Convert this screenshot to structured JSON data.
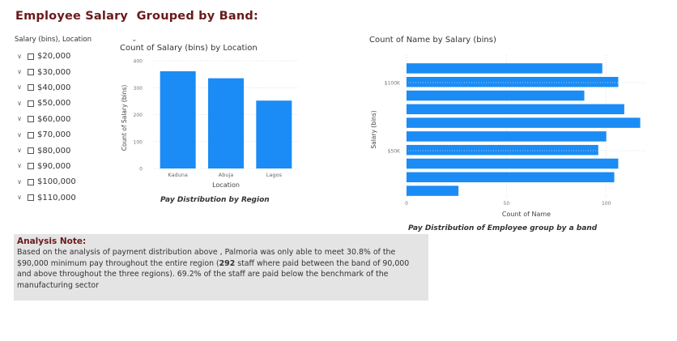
{
  "page": {
    "title": "Employee Salary  Grouped by Band:"
  },
  "slicer": {
    "title": "Salary (bins), Location",
    "items": [
      "$20,000",
      "$30,000",
      "$40,000",
      "$50,000",
      "$60,000",
      "$70,000",
      "$80,000",
      "$90,000",
      "$100,000",
      "$110,000"
    ]
  },
  "left_chart": {
    "title": "Count of Salary (bins) by Location",
    "caption": "Pay Distribution by Region"
  },
  "right_chart": {
    "title": "Count of Name by Salary (bins)",
    "caption": "Pay Distribution of Employee group  by a band"
  },
  "note": {
    "title": "Analysis Note:",
    "body_parts": [
      "Based on the analysis of payment distribution above , Palmoria was only able to meet 30.8% of the $90,000 minimum pay throughout the entire region (",
      "292",
      " staff where paid between the band of 90,000 and above throughout the three regions). 69.2% of the staff are paid below the benchmark  of the manufacturing sector"
    ]
  },
  "colors": {
    "bar": "#1b8cf5",
    "title": "#6b1a1a",
    "note_bg": "#e4e4e4"
  },
  "chart_data": [
    {
      "type": "bar",
      "title": "Count of Salary (bins) by Location",
      "categories": [
        "Kaduna",
        "Abuja",
        "Lagos"
      ],
      "values": [
        361,
        335,
        252
      ],
      "xlabel": "Location",
      "ylabel": "Count of Salary (bins)",
      "ylim": [
        0,
        400
      ],
      "yticks": [
        0,
        100,
        200,
        300,
        400
      ],
      "grid": true
    },
    {
      "type": "bar",
      "orientation": "horizontal",
      "title": "Count of Name by Salary (bins)",
      "values": [
        98,
        106,
        89,
        109,
        117,
        100,
        96,
        106,
        104,
        26
      ],
      "xlabel": "Count of Name",
      "ylabel": "Salary (bins)",
      "xlim": [
        0,
        120
      ],
      "xticks": [
        0,
        50,
        100
      ],
      "ytick_labels": [
        "$100K",
        "$50K"
      ],
      "grid": true
    }
  ]
}
